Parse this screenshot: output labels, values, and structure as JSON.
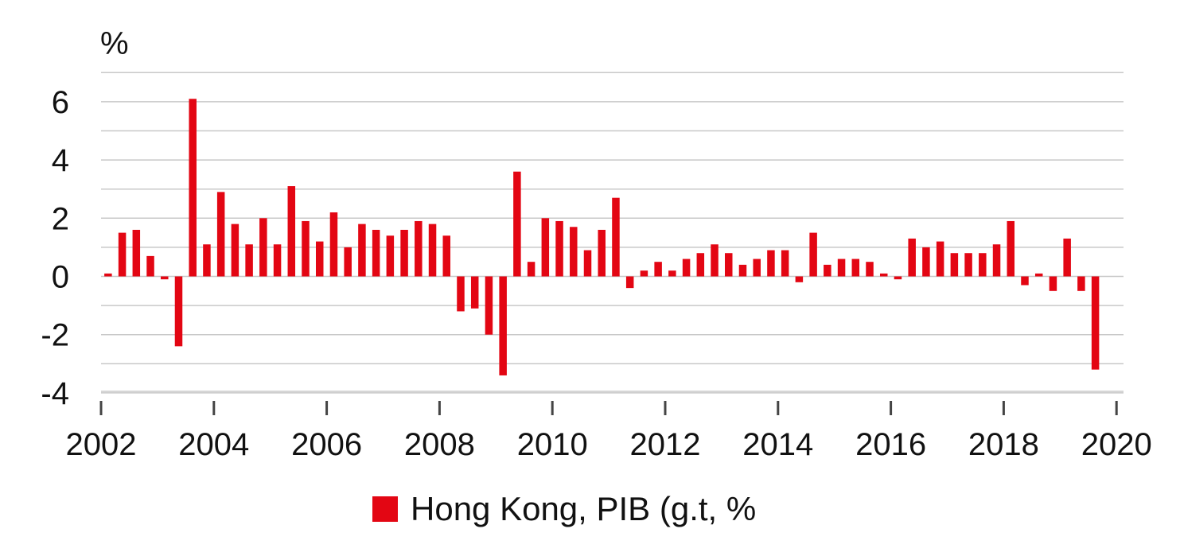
{
  "chart_data": {
    "type": "bar",
    "ylabel": "%",
    "ylim": [
      -4,
      7
    ],
    "yticks": [
      -4,
      -2,
      0,
      2,
      4,
      6
    ],
    "xticks": [
      "2002",
      "2004",
      "2006",
      "2008",
      "2010",
      "2012",
      "2014",
      "2016",
      "2018",
      "2020"
    ],
    "grid": true,
    "legend_position": "bottom",
    "bar_color": "#e30613",
    "series": [
      {
        "name": "Hong Kong, PIB (g.t, %",
        "x": [
          "2002-Q1",
          "2002-Q2",
          "2002-Q3",
          "2002-Q4",
          "2003-Q1",
          "2003-Q2",
          "2003-Q3",
          "2003-Q4",
          "2004-Q1",
          "2004-Q2",
          "2004-Q3",
          "2004-Q4",
          "2005-Q1",
          "2005-Q2",
          "2005-Q3",
          "2005-Q4",
          "2006-Q1",
          "2006-Q2",
          "2006-Q3",
          "2006-Q4",
          "2007-Q1",
          "2007-Q2",
          "2007-Q3",
          "2007-Q4",
          "2008-Q1",
          "2008-Q2",
          "2008-Q3",
          "2008-Q4",
          "2009-Q1",
          "2009-Q2",
          "2009-Q3",
          "2009-Q4",
          "2010-Q1",
          "2010-Q2",
          "2010-Q3",
          "2010-Q4",
          "2011-Q1",
          "2011-Q2",
          "2011-Q3",
          "2011-Q4",
          "2012-Q1",
          "2012-Q2",
          "2012-Q3",
          "2012-Q4",
          "2013-Q1",
          "2013-Q2",
          "2013-Q3",
          "2013-Q4",
          "2014-Q1",
          "2014-Q2",
          "2014-Q3",
          "2014-Q4",
          "2015-Q1",
          "2015-Q2",
          "2015-Q3",
          "2015-Q4",
          "2016-Q1",
          "2016-Q2",
          "2016-Q3",
          "2016-Q4",
          "2017-Q1",
          "2017-Q2",
          "2017-Q3",
          "2017-Q4",
          "2018-Q1",
          "2018-Q2",
          "2018-Q3",
          "2018-Q4",
          "2019-Q1",
          "2019-Q2",
          "2019-Q3",
          "2019-Q4"
        ],
        "values": [
          0.1,
          1.5,
          1.6,
          0.7,
          -0.1,
          -2.4,
          6.1,
          1.1,
          2.9,
          1.8,
          1.1,
          2.0,
          1.1,
          3.1,
          1.9,
          1.2,
          2.2,
          1.0,
          1.8,
          1.6,
          1.4,
          1.6,
          1.9,
          1.8,
          1.4,
          -1.2,
          -1.1,
          -2.0,
          -3.4,
          3.6,
          0.5,
          2.0,
          1.9,
          1.7,
          0.9,
          1.6,
          2.7,
          -0.4,
          0.2,
          0.5,
          0.2,
          0.6,
          0.8,
          1.1,
          0.8,
          0.4,
          0.6,
          0.9,
          0.9,
          -0.2,
          1.5,
          0.4,
          0.6,
          0.6,
          0.5,
          0.1,
          -0.1,
          1.3,
          1.0,
          1.2,
          0.8,
          0.8,
          0.8,
          1.1,
          1.9,
          -0.3,
          0.1,
          -0.5,
          1.3,
          -0.5,
          -3.2,
          null
        ]
      }
    ]
  }
}
